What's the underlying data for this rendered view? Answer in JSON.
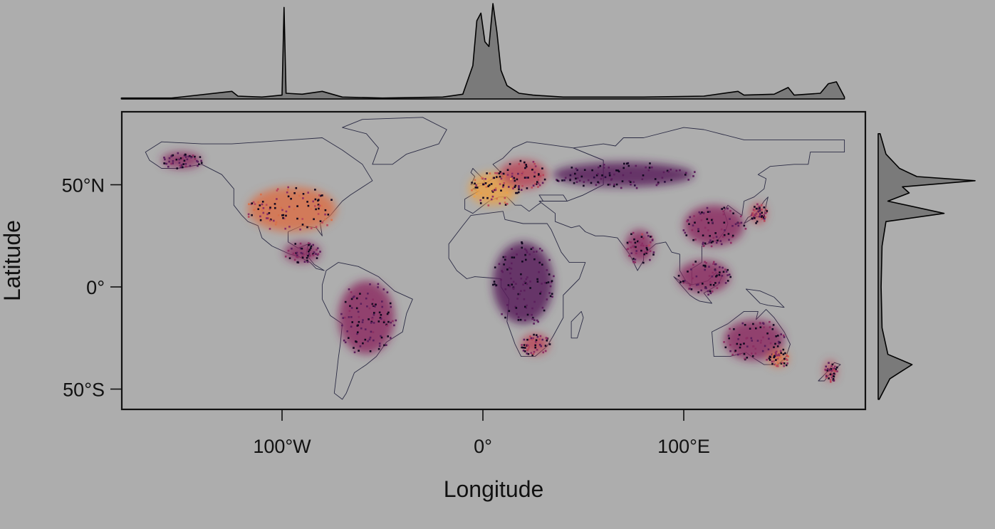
{
  "figure": {
    "background": "#adadad",
    "panel_background": "#adadad",
    "land_outline_color": "#2b2b44",
    "density_fill": "#7a7a7a",
    "density_stroke": "#000000"
  },
  "chart_data": {
    "type": "map",
    "projection": "equirectangular",
    "xlabel": "Longitude",
    "ylabel": "Latitude",
    "xlim": [
      -180,
      180
    ],
    "ylim": [
      -60,
      85
    ],
    "x_ticks": [
      {
        "value": -100,
        "label": "100°W"
      },
      {
        "value": 0,
        "label": "0°"
      },
      {
        "value": 100,
        "label": "100°E"
      }
    ],
    "y_ticks": [
      {
        "value": 50,
        "label": "50°N"
      },
      {
        "value": 0,
        "label": "0°"
      },
      {
        "value": -50,
        "label": "50°S"
      }
    ],
    "color_scale": [
      "#2a0d3f",
      "#5b1f5c",
      "#8c2f63",
      "#b8485b",
      "#d8714a",
      "#e9a14a"
    ],
    "marginal_longitude_density": [
      {
        "lon": -180,
        "d": 0.01
      },
      {
        "lon": -155,
        "d": 0.01
      },
      {
        "lon": -125,
        "d": 0.08
      },
      {
        "lon": -122,
        "d": 0.03
      },
      {
        "lon": -110,
        "d": 0.02
      },
      {
        "lon": -100,
        "d": 0.04
      },
      {
        "lon": -99,
        "d": 0.96
      },
      {
        "lon": -98,
        "d": 0.06
      },
      {
        "lon": -90,
        "d": 0.05
      },
      {
        "lon": -80,
        "d": 0.08
      },
      {
        "lon": -70,
        "d": 0.02
      },
      {
        "lon": -50,
        "d": 0.01
      },
      {
        "lon": -20,
        "d": 0.02
      },
      {
        "lon": -10,
        "d": 0.05
      },
      {
        "lon": -5,
        "d": 0.35
      },
      {
        "lon": -3,
        "d": 0.82
      },
      {
        "lon": -1,
        "d": 0.9
      },
      {
        "lon": 1,
        "d": 0.6
      },
      {
        "lon": 3,
        "d": 0.55
      },
      {
        "lon": 5,
        "d": 1.0
      },
      {
        "lon": 7,
        "d": 0.7
      },
      {
        "lon": 9,
        "d": 0.3
      },
      {
        "lon": 12,
        "d": 0.14
      },
      {
        "lon": 18,
        "d": 0.06
      },
      {
        "lon": 25,
        "d": 0.04
      },
      {
        "lon": 40,
        "d": 0.02
      },
      {
        "lon": 80,
        "d": 0.02
      },
      {
        "lon": 110,
        "d": 0.03
      },
      {
        "lon": 127,
        "d": 0.08
      },
      {
        "lon": 130,
        "d": 0.04
      },
      {
        "lon": 145,
        "d": 0.05
      },
      {
        "lon": 152,
        "d": 0.12
      },
      {
        "lon": 155,
        "d": 0.04
      },
      {
        "lon": 168,
        "d": 0.06
      },
      {
        "lon": 172,
        "d": 0.16
      },
      {
        "lon": 176,
        "d": 0.18
      },
      {
        "lon": 180,
        "d": 0.02
      }
    ],
    "marginal_latitude_density": [
      {
        "lat": 75,
        "d": 0.02
      },
      {
        "lat": 65,
        "d": 0.08
      },
      {
        "lat": 58,
        "d": 0.22
      },
      {
        "lat": 54,
        "d": 0.4
      },
      {
        "lat": 52,
        "d": 1.0
      },
      {
        "lat": 49,
        "d": 0.25
      },
      {
        "lat": 46,
        "d": 0.32
      },
      {
        "lat": 42,
        "d": 0.1
      },
      {
        "lat": 36,
        "d": 0.68
      },
      {
        "lat": 32,
        "d": 0.08
      },
      {
        "lat": 20,
        "d": 0.04
      },
      {
        "lat": 0,
        "d": 0.03
      },
      {
        "lat": -20,
        "d": 0.04
      },
      {
        "lat": -33,
        "d": 0.1
      },
      {
        "lat": -38,
        "d": 0.35
      },
      {
        "lat": -41,
        "d": 0.25
      },
      {
        "lat": -45,
        "d": 0.12
      },
      {
        "lat": -55,
        "d": 0.01
      }
    ],
    "density_regions": [
      {
        "name": "North America",
        "lon": -95,
        "lat": 38,
        "rlon": 22,
        "rlat": 11,
        "intensity": 0.75
      },
      {
        "name": "Western Europe",
        "lon": 5,
        "lat": 48,
        "rlon": 12,
        "rlat": 8,
        "intensity": 0.9
      },
      {
        "name": "Central Europe",
        "lon": 20,
        "lat": 55,
        "rlon": 12,
        "rlat": 7,
        "intensity": 0.6
      },
      {
        "name": "Central America",
        "lon": -90,
        "lat": 17,
        "rlon": 9,
        "rlat": 5,
        "intensity": 0.35
      },
      {
        "name": "South America",
        "lon": -58,
        "lat": -15,
        "rlon": 14,
        "rlat": 18,
        "intensity": 0.3
      },
      {
        "name": "Africa",
        "lon": 20,
        "lat": 2,
        "rlon": 15,
        "rlat": 20,
        "intensity": 0.25
      },
      {
        "name": "Southern Africa",
        "lon": 26,
        "lat": -28,
        "rlon": 7,
        "rlat": 5,
        "intensity": 0.55
      },
      {
        "name": "India",
        "lon": 78,
        "lat": 20,
        "rlon": 7,
        "rlat": 8,
        "intensity": 0.45
      },
      {
        "name": "East Asia",
        "lon": 115,
        "lat": 30,
        "rlon": 15,
        "rlat": 10,
        "intensity": 0.35
      },
      {
        "name": "Japan",
        "lon": 137,
        "lat": 36,
        "rlon": 4,
        "rlat": 5,
        "intensity": 0.55
      },
      {
        "name": "Southeast Asia",
        "lon": 110,
        "lat": 5,
        "rlon": 13,
        "rlat": 8,
        "intensity": 0.3
      },
      {
        "name": "Australia",
        "lon": 135,
        "lat": -26,
        "rlon": 15,
        "rlat": 10,
        "intensity": 0.35
      },
      {
        "name": "SE Australia",
        "lon": 147,
        "lat": -35,
        "rlon": 5,
        "rlat": 4,
        "intensity": 0.7
      },
      {
        "name": "New Zealand",
        "lon": 173,
        "lat": -41,
        "rlon": 3,
        "rlat": 5,
        "intensity": 0.6
      },
      {
        "name": "Russia",
        "lon": 70,
        "lat": 55,
        "rlon": 35,
        "rlat": 6,
        "intensity": 0.2
      },
      {
        "name": "Alaska",
        "lon": -150,
        "lat": 62,
        "rlon": 10,
        "rlat": 4,
        "intensity": 0.3
      }
    ]
  }
}
